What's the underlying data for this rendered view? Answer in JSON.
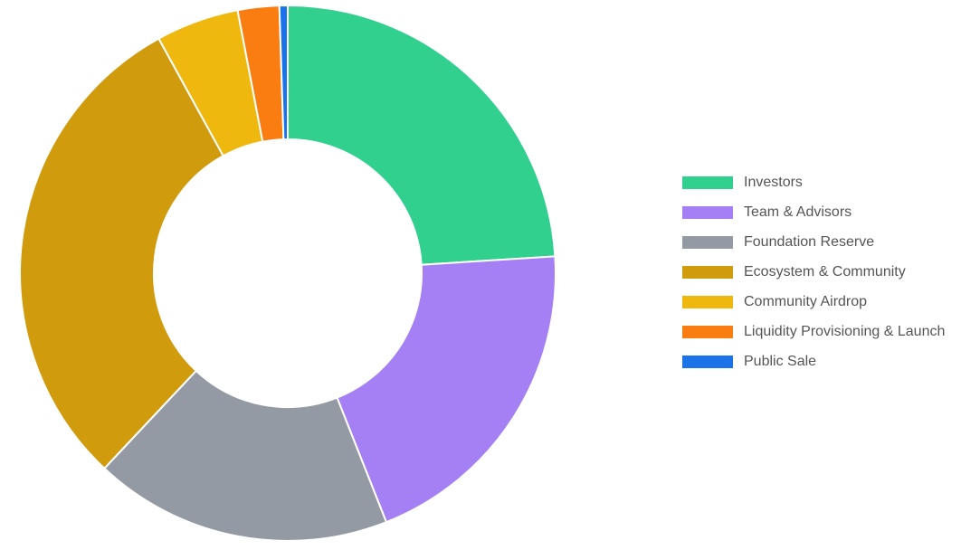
{
  "chart_data": {
    "type": "doughnut",
    "categories": [
      "Investors",
      "Team & Advisors",
      "Foundation Reserve",
      "Ecosystem & Community",
      "Community Airdrop",
      "Liquidity Provisioning & Launch",
      "Public Sale"
    ],
    "values": [
      24,
      20,
      18,
      30,
      5,
      2.5,
      0.5
    ],
    "colors": [
      "#31d08f",
      "#a57ff4",
      "#949aa4",
      "#d09b0d",
      "#eeb80e",
      "#fa7d12",
      "#1a73e8"
    ],
    "legend": "right"
  }
}
